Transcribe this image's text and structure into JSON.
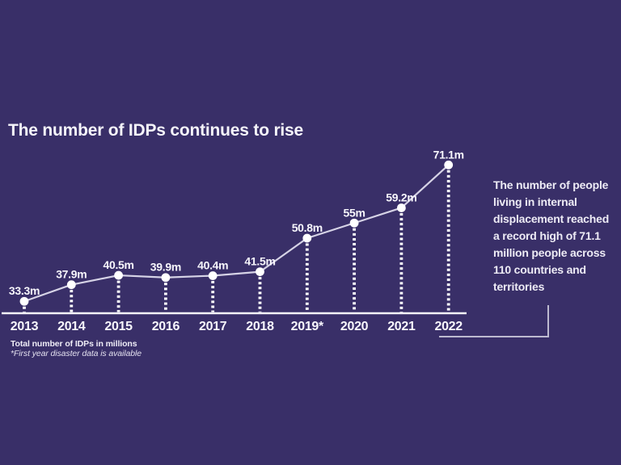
{
  "page": {
    "background_color": "#392f68",
    "text_color": "#f5f4fa"
  },
  "title": "The number of IDPs continues to rise",
  "chart_data": {
    "type": "line",
    "title": "The number of IDPs continues to rise",
    "categories": [
      "2013",
      "2014",
      "2015",
      "2016",
      "2017",
      "2018",
      "2019*",
      "2020",
      "2021",
      "2022"
    ],
    "values": [
      33.3,
      37.9,
      40.5,
      39.9,
      40.4,
      41.5,
      50.8,
      55,
      59.2,
      71.1
    ],
    "point_labels": [
      "33.3m",
      "37.9m",
      "40.5m",
      "39.9m",
      "40.4m",
      "41.5m",
      "50.8m",
      "55m",
      "59.2m",
      "71.1m"
    ],
    "xlabel": "",
    "ylabel": "Total number of IDPs in millions",
    "ylim": [
      30,
      75
    ],
    "grid": false,
    "legend": "none",
    "marker_style": "filled-circle-with-dashed-drop-line",
    "colors": {
      "line": "#d6d3e6",
      "marker": "#ffffff",
      "axis": "#f4f3fa",
      "label": "#f7f6fc"
    }
  },
  "footnotes": {
    "units": "Total number of IDPs in millions",
    "asterisk_note": "*First year disaster data is available"
  },
  "annotation": {
    "text": "The number of people\nliving in internal\ndisplacement reached\na record high of 71.1\nmillion people across\n110 countries and\nterritories"
  }
}
